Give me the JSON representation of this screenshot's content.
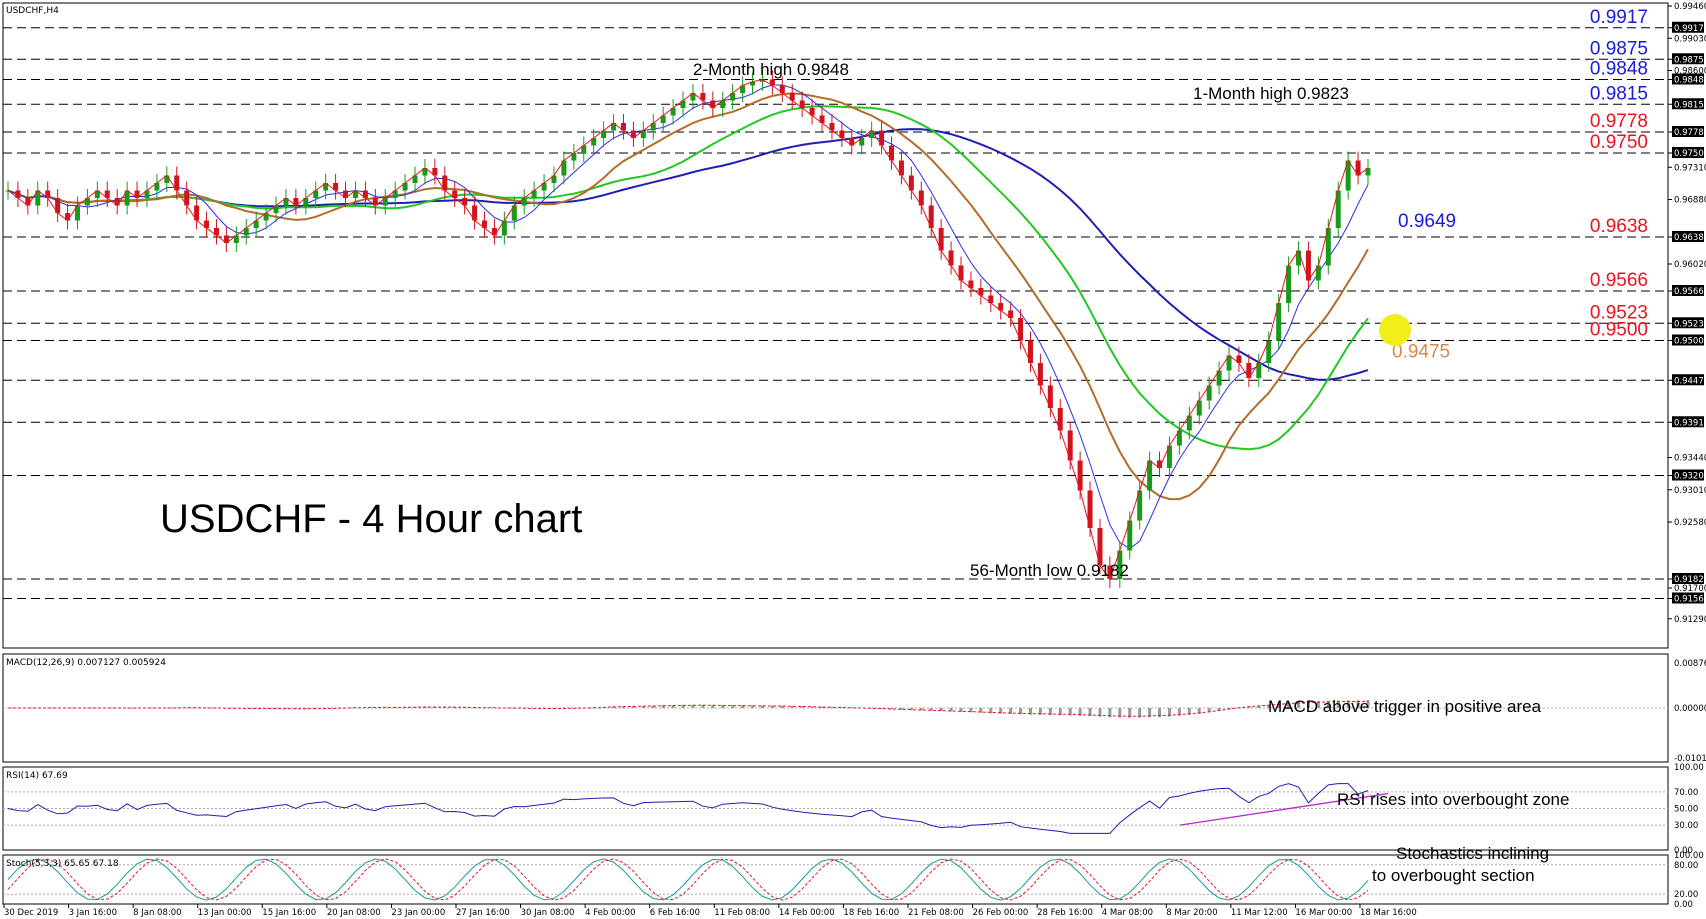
{
  "chart_data": {
    "type": "line",
    "symbol_label": "USDCHF,H4",
    "title": "USDCHF - 4 Hour chart",
    "price_axis": {
      "range": [
        0.909,
        0.995
      ],
      "ticks": [
        "0.99460",
        "0.99170",
        "0.99030",
        "0.98750",
        "0.98600",
        "0.98480",
        "0.98150",
        "0.97780",
        "0.97500",
        "0.97310",
        "0.96880",
        "0.96380",
        "0.96020",
        "0.95660",
        "0.95230",
        "0.95000",
        "0.94470",
        "0.93910",
        "0.93440",
        "0.93200",
        "0.93010",
        "0.92580",
        "0.91820",
        "0.91700",
        "0.91560",
        "0.91290"
      ]
    },
    "boxed_ticks": [
      "0.99170",
      "0.98750",
      "0.98480",
      "0.98150",
      "0.97780",
      "0.97500",
      "0.96380",
      "0.95660",
      "0.95230",
      "0.95000",
      "0.94470",
      "0.93910",
      "0.93200",
      "0.91820",
      "0.91560"
    ],
    "x_labels": [
      "30 Dec 2019",
      "3 Jan 16:00",
      "8 Jan 08:00",
      "13 Jan 00:00",
      "15 Jan 16:00",
      "20 Jan 08:00",
      "23 Jan 00:00",
      "27 Jan 16:00",
      "30 Jan 08:00",
      "4 Feb 00:00",
      "6 Feb 16:00",
      "11 Feb 08:00",
      "14 Feb 00:00",
      "18 Feb 16:00",
      "21 Feb 08:00",
      "26 Feb 00:00",
      "28 Feb 16:00",
      "4 Mar 08:00",
      "8 Mar 20:00",
      "11 Mar 12:00",
      "16 Mar 00:00",
      "18 Mar 16:00"
    ],
    "levels": [
      {
        "value": 0.9917,
        "label": "0.9917",
        "color": "#1a1adc"
      },
      {
        "value": 0.9875,
        "label": "0.9875",
        "color": "#1a1adc"
      },
      {
        "value": 0.9848,
        "label": "0.9848",
        "color": "#1a1adc"
      },
      {
        "value": 0.9815,
        "label": "0.9815",
        "color": "#1a1adc"
      },
      {
        "value": 0.9778,
        "label": "0.9778",
        "color": "#e8141e"
      },
      {
        "value": 0.975,
        "label": "0.9750",
        "color": "#e8141e"
      },
      {
        "value": 0.9638,
        "label": "0.9638",
        "color": "#e8141e"
      },
      {
        "value": 0.9566,
        "label": "0.9566",
        "color": "#e8141e"
      },
      {
        "value": 0.9523,
        "label": "0.9523",
        "color": "#e8141e"
      },
      {
        "value": 0.95,
        "label": "0.9500",
        "color": "#e8141e"
      },
      {
        "value": 0.9447,
        "label": "",
        "color": "#000000"
      },
      {
        "value": 0.9391,
        "label": "",
        "color": "#000000"
      },
      {
        "value": 0.932,
        "label": "",
        "color": "#000000"
      },
      {
        "value": 0.9182,
        "label": "",
        "color": "#000000"
      },
      {
        "value": 0.9156,
        "label": "",
        "color": "#000000"
      }
    ],
    "extra_labels": [
      {
        "text": "0.9649",
        "value": 0.9649,
        "color": "#1a1adc"
      },
      {
        "text": "0.9475",
        "value": 0.9475,
        "color": "#d98a4a"
      }
    ],
    "annotations": {
      "two_month_high": "2-Month high 0.9848",
      "one_month_high": "1-Month high 0.9823",
      "low": "56-Month low 0.9182"
    },
    "series_price": [
      0.97,
      0.969,
      0.968,
      0.97,
      0.969,
      0.967,
      0.966,
      0.968,
      0.969,
      0.97,
      0.969,
      0.968,
      0.97,
      0.969,
      0.97,
      0.971,
      0.972,
      0.97,
      0.968,
      0.966,
      0.965,
      0.964,
      0.963,
      0.964,
      0.965,
      0.966,
      0.967,
      0.968,
      0.969,
      0.968,
      0.969,
      0.97,
      0.971,
      0.97,
      0.969,
      0.97,
      0.969,
      0.968,
      0.969,
      0.97,
      0.971,
      0.972,
      0.973,
      0.972,
      0.97,
      0.969,
      0.968,
      0.966,
      0.965,
      0.964,
      0.966,
      0.968,
      0.969,
      0.97,
      0.971,
      0.972,
      0.974,
      0.975,
      0.976,
      0.977,
      0.978,
      0.979,
      0.978,
      0.977,
      0.978,
      0.979,
      0.98,
      0.981,
      0.982,
      0.983,
      0.982,
      0.981,
      0.982,
      0.983,
      0.984,
      0.9845,
      0.9848,
      0.984,
      0.983,
      0.982,
      0.981,
      0.98,
      0.979,
      0.978,
      0.977,
      0.976,
      0.977,
      0.978,
      0.976,
      0.974,
      0.972,
      0.97,
      0.968,
      0.965,
      0.962,
      0.96,
      0.958,
      0.957,
      0.956,
      0.955,
      0.954,
      0.953,
      0.95,
      0.947,
      0.944,
      0.941,
      0.938,
      0.934,
      0.93,
      0.925,
      0.92,
      0.9182,
      0.922,
      0.926,
      0.93,
      0.934,
      0.933,
      0.936,
      0.938,
      0.94,
      0.942,
      0.944,
      0.946,
      0.948,
      0.947,
      0.945,
      0.947,
      0.95,
      0.955,
      0.96,
      0.962,
      0.958,
      0.96,
      0.965,
      0.97,
      0.974,
      0.972,
      0.973
    ],
    "macd": {
      "label": "MACD(12,26,9) 0.007127 0.005924",
      "ticks": [
        "0.008765",
        "0.000000",
        "-0.010106"
      ],
      "annotation": "MACD above trigger in positive area"
    },
    "rsi": {
      "label": "RSI(14) 67.69",
      "ticks": [
        "100.00",
        "70.00",
        "50.00",
        "30.00",
        "0.00"
      ],
      "annotation": "RSI rises into overbought zone"
    },
    "stoch": {
      "label": "Stoch(5,3,3) 65.65 67.18",
      "ticks": [
        "100.00",
        "80.00",
        "20.00",
        "0.00"
      ],
      "annotation_lines": [
        "Stochastics inclining",
        "to overbought section"
      ]
    }
  }
}
